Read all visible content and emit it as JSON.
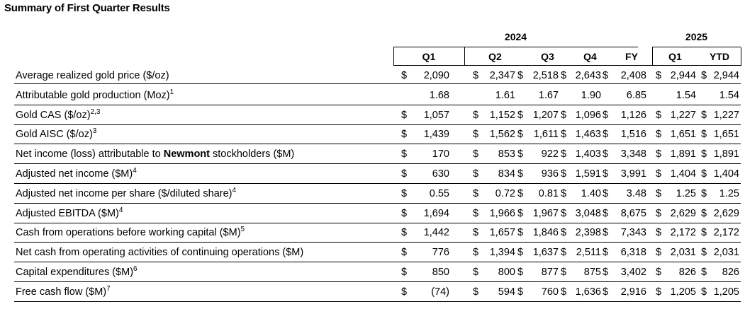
{
  "title": "Summary of First Quarter Results",
  "years": [
    "2024",
    "2025"
  ],
  "quarters": [
    "Q1",
    "Q2",
    "Q3",
    "Q4",
    "FY",
    "Q1",
    "YTD"
  ],
  "currency_symbol": "$",
  "rows": [
    {
      "label": "Average realized gold price ($/oz)",
      "bold": "",
      "tail": "",
      "sup": "",
      "dollar": true,
      "values": [
        "2,090",
        "2,347",
        "2,518",
        "2,643",
        "2,408",
        "2,944",
        "2,944"
      ]
    },
    {
      "label": "Attributable gold production (Moz)",
      "bold": "",
      "tail": "",
      "sup": "1",
      "dollar": false,
      "values": [
        "1.68",
        "1.61",
        "1.67",
        "1.90",
        "6.85",
        "1.54",
        "1.54"
      ]
    },
    {
      "label": "Gold CAS ($/oz)",
      "bold": "",
      "tail": "",
      "sup": "2,3",
      "dollar": true,
      "values": [
        "1,057",
        "1,152",
        "1,207",
        "1,096",
        "1,126",
        "1,227",
        "1,227"
      ]
    },
    {
      "label": "Gold AISC ($/oz)",
      "bold": "",
      "tail": "",
      "sup": "3",
      "dollar": true,
      "values": [
        "1,439",
        "1,562",
        "1,611",
        "1,463",
        "1,516",
        "1,651",
        "1,651"
      ]
    },
    {
      "label": "Net income (loss) attributable to ",
      "bold": "Newmont",
      "tail": " stockholders ($M)",
      "sup": "",
      "dollar": true,
      "values": [
        "170",
        "853",
        "922",
        "1,403",
        "3,348",
        "1,891",
        "1,891"
      ]
    },
    {
      "label": "Adjusted net income ($M)",
      "bold": "",
      "tail": "",
      "sup": "4",
      "dollar": true,
      "values": [
        "630",
        "834",
        "936",
        "1,591",
        "3,991",
        "1,404",
        "1,404"
      ]
    },
    {
      "label": "Adjusted net income per share ($/diluted share)",
      "bold": "",
      "tail": "",
      "sup": "4",
      "dollar": true,
      "values": [
        "0.55",
        "0.72",
        "0.81",
        "1.40",
        "3.48",
        "1.25",
        "1.25"
      ]
    },
    {
      "label": "Adjusted EBITDA ($M)",
      "bold": "",
      "tail": "",
      "sup": "4",
      "dollar": true,
      "values": [
        "1,694",
        "1,966",
        "1,967",
        "3,048",
        "8,675",
        "2,629",
        "2,629"
      ]
    },
    {
      "label": "Cash from operations before working capital ($M)",
      "bold": "",
      "tail": "",
      "sup": "5",
      "dollar": true,
      "values": [
        "1,442",
        "1,657",
        "1,846",
        "2,398",
        "7,343",
        "2,172",
        "2,172"
      ]
    },
    {
      "label": "Net cash from operating activities of continuing operations ($M)",
      "bold": "",
      "tail": "",
      "sup": "",
      "dollar": true,
      "values": [
        "776",
        "1,394",
        "1,637",
        "2,511",
        "6,318",
        "2,031",
        "2,031"
      ]
    },
    {
      "label": "Capital expenditures ($M)",
      "bold": "",
      "tail": "",
      "sup": "6",
      "dollar": true,
      "values": [
        "850",
        "800",
        "877",
        "875",
        "3,402",
        "826",
        "826"
      ]
    },
    {
      "label": "Free cash flow ($M)",
      "bold": "",
      "tail": "",
      "sup": "7",
      "dollar": true,
      "values": [
        "(74)",
        "594",
        "760",
        "1,636",
        "2,916",
        "1,205",
        "1,205"
      ]
    }
  ]
}
